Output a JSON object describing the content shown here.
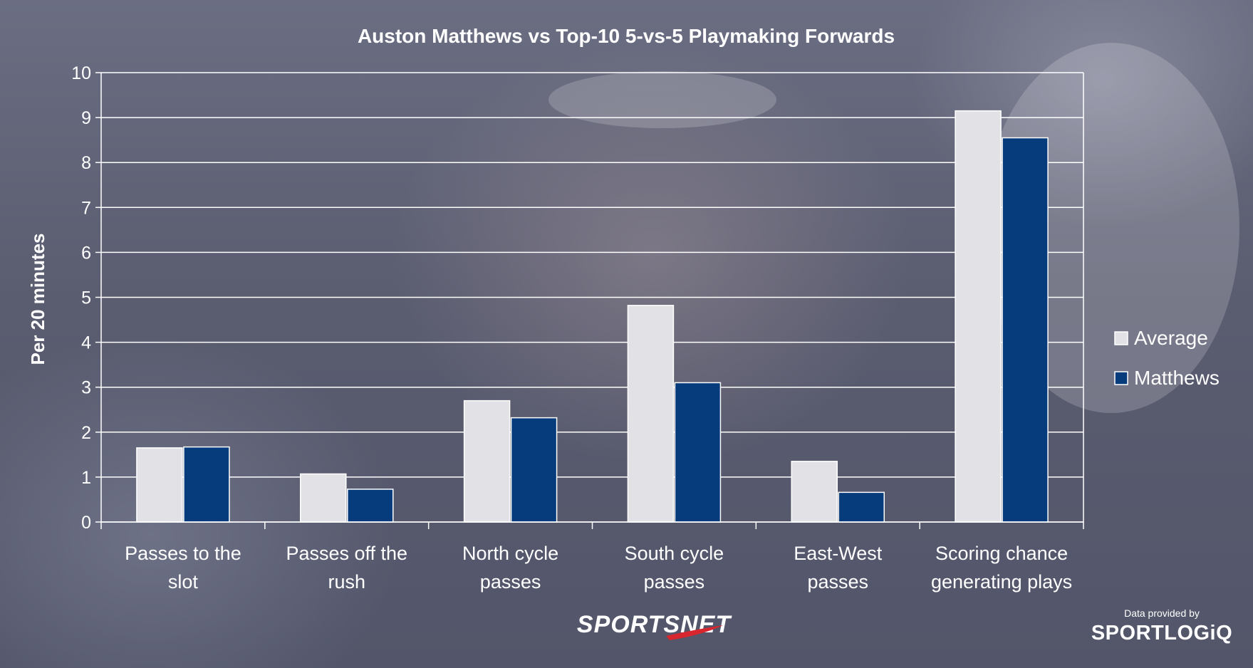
{
  "chart_data": {
    "type": "bar",
    "title": "Auston Matthews vs Top-10 5-vs-5 Playmaking Forwards",
    "ylabel": "Per 20 minutes",
    "xlabel": "",
    "ylim": [
      0,
      10
    ],
    "yticks": [
      "0",
      "1",
      "2",
      "3",
      "4",
      "5",
      "6",
      "7",
      "8",
      "9",
      "10"
    ],
    "grid": true,
    "legend_position": "right",
    "categories": [
      [
        "Passes to the",
        "slot"
      ],
      [
        "Passes off the",
        "rush"
      ],
      [
        "North cycle",
        "passes"
      ],
      [
        "South cycle",
        "passes"
      ],
      [
        "East-West",
        "passes"
      ],
      [
        "Scoring chance",
        "generating plays"
      ]
    ],
    "series": [
      {
        "name": "Average",
        "color": "#e2e2e6",
        "values": [
          1.65,
          1.07,
          2.7,
          4.82,
          1.35,
          9.15
        ]
      },
      {
        "name": "Matthews",
        "color": "#063b7c",
        "values": [
          1.67,
          0.73,
          2.32,
          3.1,
          0.66,
          8.55
        ]
      }
    ]
  },
  "branding": {
    "sportsnet": "SPORTSNET",
    "provided_by": "Data provided by",
    "sportlogiq": "SPORTLOGiQ"
  },
  "colors": {
    "gridline": "#ffffff",
    "text": "#ffffff",
    "accent_red": "#d7262e"
  }
}
